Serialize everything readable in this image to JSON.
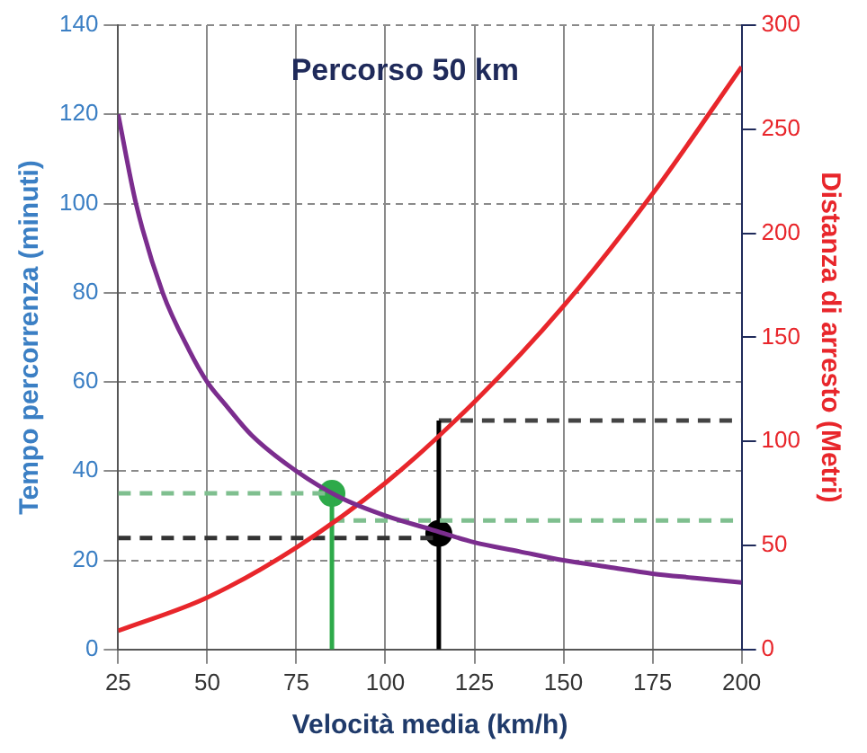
{
  "chart_data": {
    "type": "line",
    "title": "Percorso 50 km",
    "xlabel": "Velocità media (km/h)",
    "ylabel": "Tempo percorrenza (minuti)",
    "y2label": "Distanza di arresto (Metri)",
    "xlim": [
      25,
      200
    ],
    "xticks": [
      25,
      50,
      75,
      100,
      125,
      150,
      175,
      200
    ],
    "ylim": [
      0,
      140
    ],
    "yticks": [
      0,
      20,
      40,
      60,
      80,
      100,
      120,
      140
    ],
    "y2lim": [
      0,
      300
    ],
    "y2ticks": [
      0,
      50,
      100,
      150,
      200,
      250,
      300
    ],
    "grid": true,
    "legend": false,
    "marker": "none",
    "line_style": "solid",
    "series": [
      {
        "color": "#7b2d8e",
        "x": [
          25,
          30,
          37.5,
          45,
          50,
          55,
          62.5,
          75,
          87.5,
          100,
          112.5,
          125,
          137.5,
          150,
          162.5,
          175,
          187.5,
          200
        ],
        "values": [
          120,
          100,
          80,
          67,
          60,
          55,
          48,
          40,
          34,
          30,
          27,
          24,
          22,
          20,
          18.5,
          17,
          16,
          15
        ]
      },
      {
        "color": "#e8262b",
        "axis": "y2",
        "x": [
          25,
          50,
          75,
          100,
          125,
          150,
          175,
          200
        ],
        "values": [
          9,
          25,
          49,
          80,
          119,
          165,
          219,
          280
        ]
      },
      {
        "color": "#7fbf8f",
        "line_style": "dashed",
        "x": [
          25,
          85
        ],
        "values": [
          35,
          35
        ]
      },
      {
        "color": "#2eaa4a",
        "x": [
          85,
          85
        ],
        "values": [
          0,
          35
        ]
      },
      {
        "color": "#7fbf8f",
        "line_style": "dashed",
        "axis": "y2",
        "x": [
          85,
          200
        ],
        "values": [
          62,
          62
        ]
      },
      {
        "color": "#333333",
        "line_style": "dashed",
        "x": [
          25,
          115
        ],
        "values": [
          25,
          25
        ]
      },
      {
        "color": "#000000",
        "axis": "y2",
        "x": [
          115,
          115
        ],
        "values": [
          0,
          110
        ]
      },
      {
        "color": "#444444",
        "line_style": "dashed",
        "axis": "y2",
        "x": [
          115,
          200
        ],
        "values": [
          110,
          110
        ]
      },
      {
        "type": "scatter",
        "marker": "circle",
        "color": "#2eaa4a",
        "x": [
          85
        ],
        "values": [
          35
        ]
      },
      {
        "type": "scatter",
        "marker": "circle",
        "color": "#000000",
        "x": [
          115
        ],
        "values": [
          26
        ]
      }
    ]
  }
}
